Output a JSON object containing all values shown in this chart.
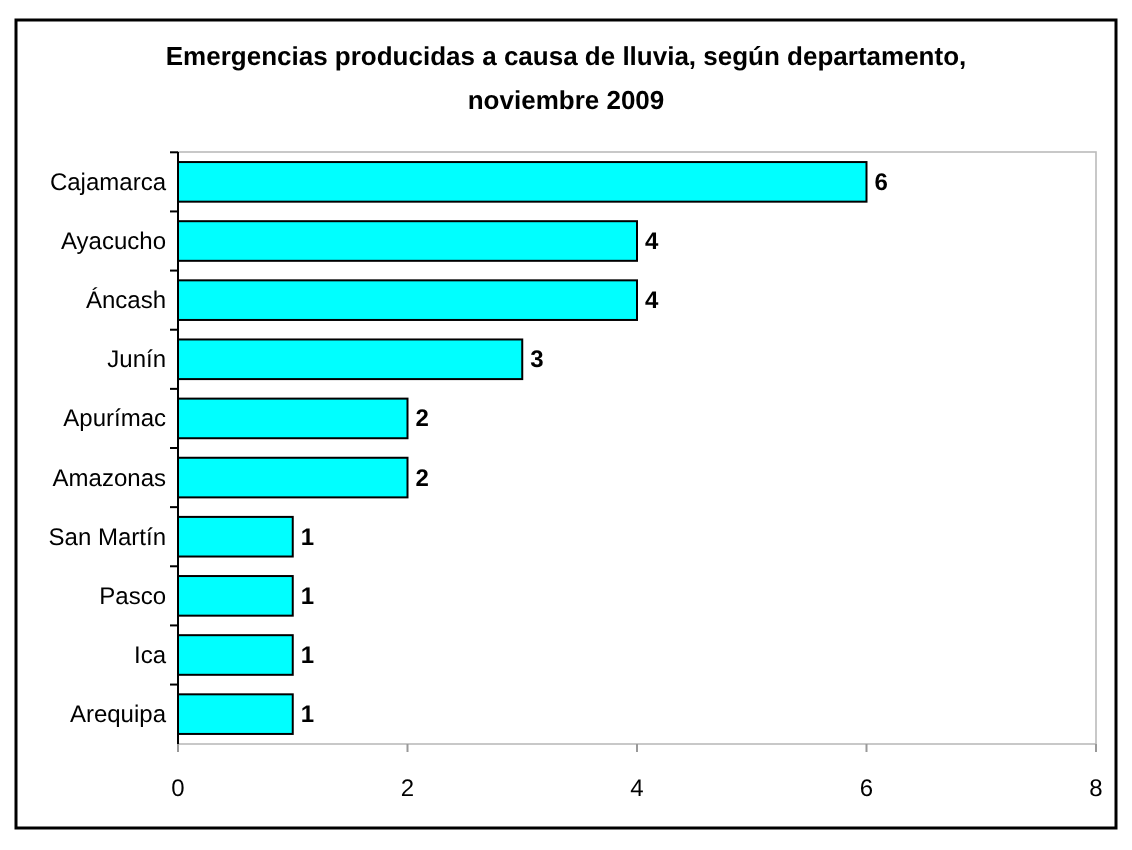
{
  "chart_data": {
    "type": "bar",
    "orientation": "horizontal",
    "title": "Emergencias producidas a causa de lluvia, según departamento,\nnoviembre 2009",
    "categories": [
      "Cajamarca",
      "Ayacucho",
      "Áncash",
      "Junín",
      "Apurímac",
      "Amazonas",
      "San Martín",
      "Pasco",
      "Ica",
      "Arequipa"
    ],
    "values": [
      6,
      4,
      4,
      3,
      2,
      2,
      1,
      1,
      1,
      1
    ],
    "color": "#00ffff",
    "xlim": [
      0,
      8
    ],
    "xticks": [
      0,
      2,
      4,
      6,
      8
    ],
    "grid": false,
    "data_labels": true
  }
}
